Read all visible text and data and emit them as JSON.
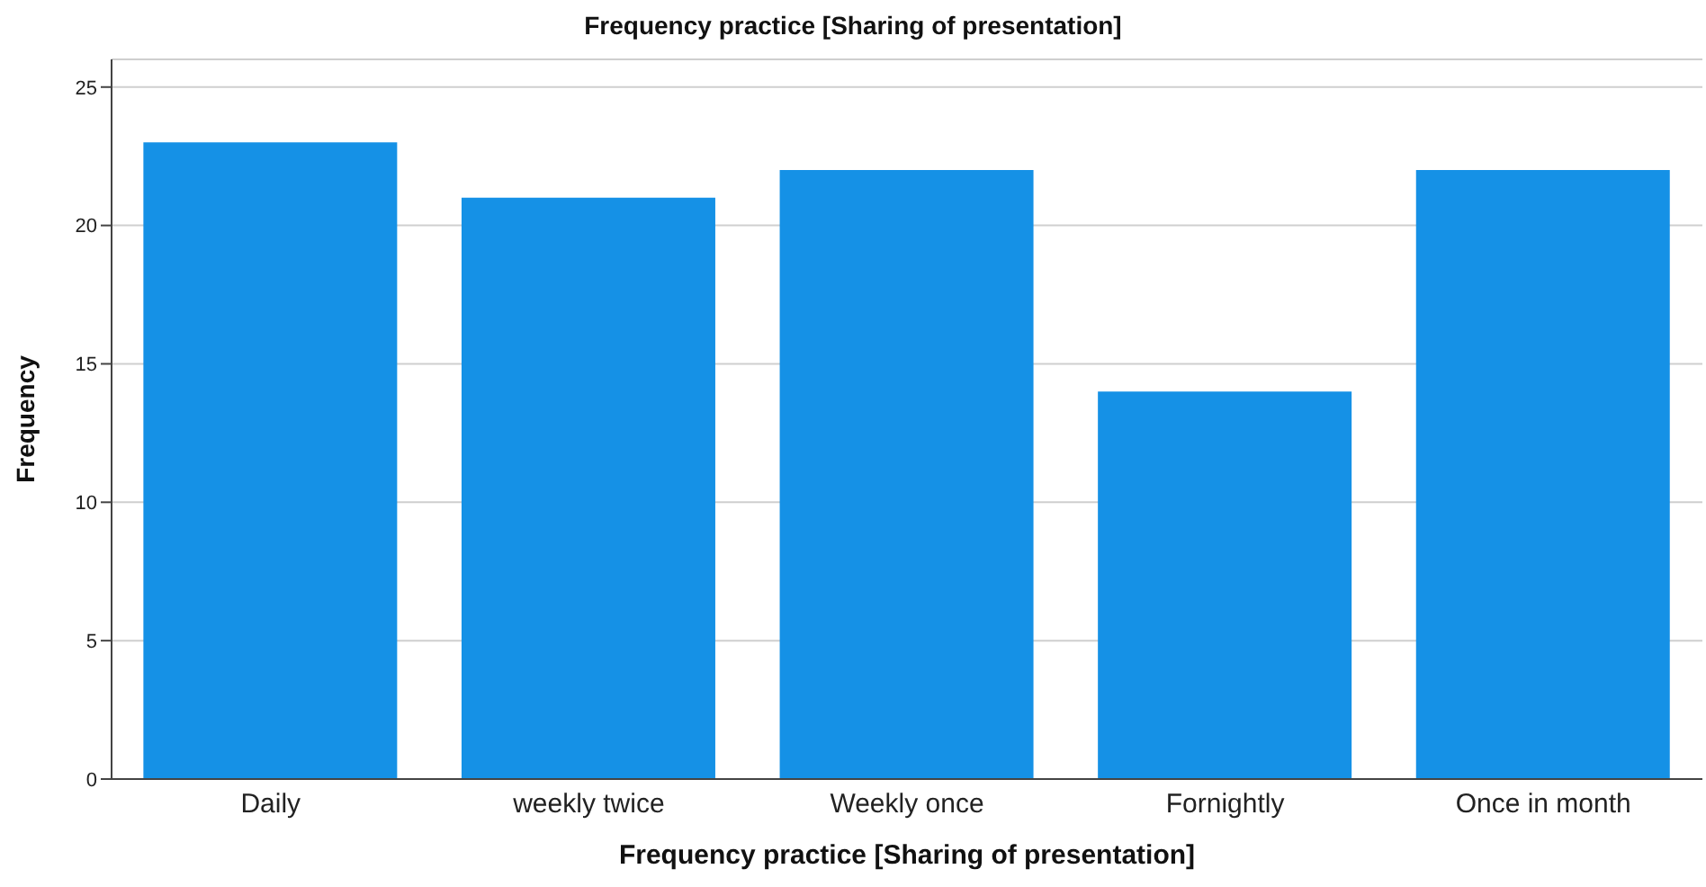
{
  "chart_data": {
    "type": "bar",
    "title": "Frequency practice [Sharing of presentation]",
    "xlabel": "Frequency practice [Sharing of presentation]",
    "ylabel": "Frequency",
    "categories": [
      "Daily",
      "weekly twice",
      "Weekly once",
      "Fornightly",
      "Once in month"
    ],
    "values": [
      23,
      21,
      22,
      14,
      22
    ],
    "color": "#1591e6",
    "ylim": [
      0,
      26
    ],
    "yticks": [
      0,
      5,
      10,
      15,
      20,
      25
    ],
    "grid": "y"
  }
}
